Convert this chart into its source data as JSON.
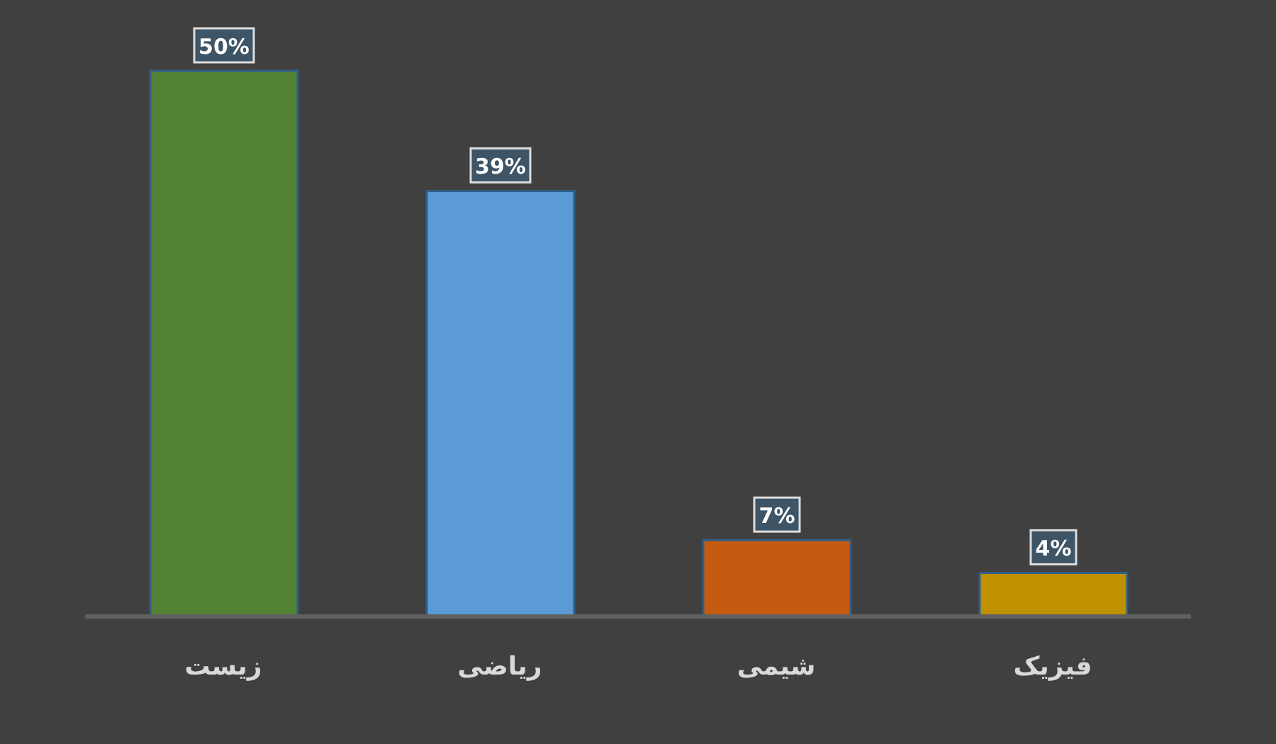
{
  "chart_data": {
    "type": "bar",
    "categories": [
      "زیست",
      "ریاضی",
      "شیمی",
      "فیزیک"
    ],
    "values": [
      50,
      39,
      7,
      4
    ],
    "colors": [
      "#548235",
      "#5b9bd5",
      "#c55a11",
      "#bf9000"
    ],
    "value_labels": [
      "50%",
      "39%",
      "7%",
      "4%"
    ],
    "grid": false,
    "legend": false
  }
}
